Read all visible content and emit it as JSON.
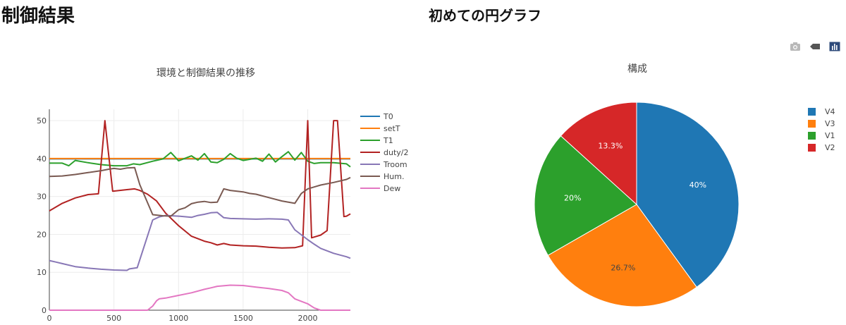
{
  "page": {
    "title": "制御結果",
    "pie_heading": "初めての円グラフ"
  },
  "modebar": {
    "buttons": [
      {
        "icon": "camera-icon"
      },
      {
        "icon": "tag-icon"
      },
      {
        "icon": "bar-chart-icon"
      }
    ]
  },
  "colors": {
    "T0": "#1f77b4",
    "setT": "#ff7f0e",
    "T1": "#2ca02c",
    "duty/2": "#d62728",
    "Troom": "#9467bd",
    "Hum.": "#8c564b",
    "Dew": "#e377c2"
  },
  "chart_data": [
    {
      "type": "line",
      "title": "環境と制御結果の推移",
      "xlabel": "",
      "ylabel": "",
      "xlim": [
        0,
        2330
      ],
      "ylim": [
        0,
        53
      ],
      "xticks": [
        0,
        500,
        1000,
        1500,
        2000
      ],
      "yticks": [
        0,
        10,
        20,
        30,
        40,
        50
      ],
      "grid": true,
      "legend": "right",
      "series": [
        {
          "name": "T0",
          "color": "#1f77b4",
          "x": [
            0,
            2330
          ],
          "y": [
            39.9,
            39.9
          ]
        },
        {
          "name": "setT",
          "color": "#ff7f0e",
          "x": [
            0,
            2330
          ],
          "y": [
            40,
            40
          ]
        },
        {
          "name": "T1",
          "color": "#2ca02c",
          "x": [
            0,
            100,
            150,
            200,
            300,
            400,
            500,
            600,
            650,
            700,
            800,
            880,
            940,
            1000,
            1100,
            1150,
            1200,
            1250,
            1300,
            1350,
            1400,
            1450,
            1500,
            1600,
            1650,
            1700,
            1750,
            1800,
            1850,
            1900,
            1950,
            2000,
            2050,
            2100,
            2200,
            2300,
            2330
          ],
          "y": [
            38.8,
            38.8,
            38.1,
            39.5,
            38.9,
            38.4,
            38.1,
            38.1,
            38.6,
            38.4,
            39.3,
            39.9,
            41.6,
            39.4,
            40.7,
            39.6,
            41.3,
            39.1,
            38.9,
            39.8,
            41.3,
            40.1,
            39.5,
            40.1,
            39.3,
            41.2,
            39.1,
            40.5,
            41.8,
            39.6,
            41.6,
            39.3,
            38.7,
            38.9,
            38.9,
            38.6,
            37.8
          ]
        },
        {
          "name": "duty/2",
          "color": "#b22222",
          "x": [
            0,
            100,
            200,
            300,
            380,
            430,
            490,
            600,
            660,
            700,
            760,
            830,
            900,
            1000,
            1100,
            1200,
            1250,
            1300,
            1350,
            1400,
            1500,
            1600,
            1700,
            1800,
            1900,
            1960,
            2000,
            2030,
            2100,
            2150,
            2200,
            2230,
            2280,
            2300,
            2330
          ],
          "y": [
            26.2,
            28.2,
            29.6,
            30.5,
            30.7,
            50,
            31.4,
            31.8,
            32,
            31.6,
            30.6,
            28.8,
            25.6,
            22.3,
            19.5,
            18.2,
            17.8,
            17.2,
            17.6,
            17.2,
            17,
            16.9,
            16.6,
            16.4,
            16.5,
            17,
            50,
            19.1,
            19.8,
            21,
            50,
            50,
            24.7,
            24.8,
            25.4
          ]
        },
        {
          "name": "Troom",
          "color": "#8877b6",
          "x": [
            0,
            50,
            100,
            200,
            300,
            400,
            500,
            600,
            620,
            680,
            740,
            800,
            850,
            900,
            1000,
            1100,
            1150,
            1200,
            1250,
            1300,
            1350,
            1400,
            1500,
            1600,
            1700,
            1800,
            1850,
            1900,
            2000,
            2050,
            2100,
            2200,
            2300,
            2330
          ],
          "y": [
            13.1,
            12.7,
            12.3,
            11.5,
            11.1,
            10.8,
            10.6,
            10.5,
            10.9,
            11.2,
            17.5,
            23.8,
            24.6,
            25,
            24.8,
            24.5,
            25,
            25.3,
            25.7,
            25.8,
            24.4,
            24.2,
            24.1,
            24,
            24.1,
            24,
            23.8,
            21.2,
            18.6,
            17.4,
            16.3,
            15,
            14.1,
            13.7
          ]
        },
        {
          "name": "Hum.",
          "color": "#7a5a52",
          "x": [
            0,
            100,
            200,
            300,
            400,
            460,
            500,
            550,
            600,
            660,
            700,
            800,
            880,
            940,
            1000,
            1050,
            1100,
            1150,
            1200,
            1250,
            1300,
            1350,
            1400,
            1500,
            1550,
            1600,
            1700,
            1800,
            1900,
            1950,
            2000,
            2050,
            2100,
            2200,
            2300,
            2330
          ],
          "y": [
            35.3,
            35.4,
            35.8,
            36.3,
            36.8,
            37.2,
            37.4,
            37.2,
            37.5,
            37.6,
            33.1,
            25.2,
            24.9,
            24.8,
            26.5,
            27,
            28.1,
            28.5,
            28.7,
            28.4,
            28.5,
            32,
            31.6,
            31.2,
            30.8,
            30.6,
            29.7,
            28.8,
            28.2,
            30.8,
            32,
            32.5,
            33,
            33.7,
            34.5,
            35
          ]
        },
        {
          "name": "Dew",
          "color": "#e377c2",
          "x": [
            0,
            600,
            700,
            760,
            800,
            830,
            850,
            900,
            1000,
            1100,
            1200,
            1250,
            1300,
            1400,
            1500,
            1600,
            1700,
            1800,
            1850,
            1900,
            2000,
            2050,
            2100,
            2330
          ],
          "y": [
            0,
            0,
            0,
            0,
            1.1,
            2.5,
            3,
            3.2,
            3.9,
            4.6,
            5.5,
            5.9,
            6.3,
            6.6,
            6.5,
            6.1,
            5.7,
            5.2,
            4.6,
            3,
            1.7,
            0.6,
            0,
            0
          ]
        }
      ]
    },
    {
      "type": "pie",
      "title": "構成",
      "legend": "right",
      "slices": [
        {
          "label": "V4",
          "value": 40,
          "text": "40%",
          "color": "#1f77b4"
        },
        {
          "label": "V3",
          "value": 26.7,
          "text": "26.7%",
          "color": "#ff7f0e"
        },
        {
          "label": "V1",
          "value": 20,
          "text": "20%",
          "color": "#2ca02c"
        },
        {
          "label": "V2",
          "value": 13.3,
          "text": "13.3%",
          "color": "#d62728"
        }
      ]
    }
  ]
}
